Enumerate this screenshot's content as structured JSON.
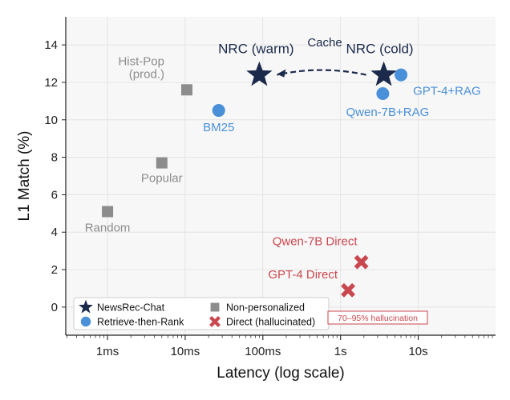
{
  "chart_data": {
    "type": "scatter",
    "title": "",
    "xlabel": "Latency (log scale)",
    "ylabel": "L1 Match (%)",
    "xscale": "log",
    "xlim": [
      0.00029,
      99
    ],
    "ylim": [
      -1.5,
      15.5
    ],
    "x_ticks": [
      {
        "value": 0.001,
        "label": "1ms"
      },
      {
        "value": 0.01,
        "label": "10ms"
      },
      {
        "value": 0.1,
        "label": "100ms"
      },
      {
        "value": 1,
        "label": "1s"
      },
      {
        "value": 10,
        "label": "10s"
      }
    ],
    "y_ticks": [
      0,
      2,
      4,
      6,
      8,
      10,
      12,
      14
    ],
    "grid": true,
    "legend_position": "bottom-left",
    "legend": [
      {
        "label": "NewsRec-Chat",
        "marker": "star",
        "color": "#1b2a4a"
      },
      {
        "label": "Retrieve-then-Rank",
        "marker": "circle",
        "color": "#4a90d9"
      },
      {
        "label": "Non-personalized",
        "marker": "square",
        "color": "#8c8c8c"
      },
      {
        "label": "Direct (hallucinated)",
        "marker": "x",
        "color": "#c9474f"
      }
    ],
    "series": [
      {
        "name": "NewsRec-Chat",
        "marker": "star",
        "color": "#1b2a4a",
        "points": [
          {
            "x": 0.09,
            "y": 12.4,
            "label": "NRC (warm)"
          },
          {
            "x": 3.6,
            "y": 12.4,
            "label": "NRC (cold)"
          }
        ]
      },
      {
        "name": "Retrieve-then-Rank",
        "marker": "circle",
        "color": "#4a90d9",
        "points": [
          {
            "x": 0.027,
            "y": 10.5,
            "label": "BM25"
          },
          {
            "x": 3.5,
            "y": 11.4,
            "label": "Qwen-7B+RAG"
          },
          {
            "x": 6.0,
            "y": 12.4,
            "label": "GPT-4+RAG"
          }
        ]
      },
      {
        "name": "Non-personalized",
        "marker": "square",
        "color": "#8c8c8c",
        "points": [
          {
            "x": 0.001,
            "y": 5.1,
            "label": "Random"
          },
          {
            "x": 0.005,
            "y": 7.7,
            "label": "Popular"
          },
          {
            "x": 0.0105,
            "y": 11.6,
            "label": "Hist-Pop (prod.)",
            "label_lines": [
              "Hist-Pop",
              "(prod.)"
            ]
          }
        ]
      },
      {
        "name": "Direct (hallucinated)",
        "marker": "x",
        "color": "#c9474f",
        "points": [
          {
            "x": 1.85,
            "y": 2.4,
            "label": "Qwen-7B Direct"
          },
          {
            "x": 1.25,
            "y": 0.9,
            "label": "GPT-4 Direct"
          }
        ]
      }
    ],
    "annotations": [
      {
        "text": "Cache",
        "arrow_from": "NRC (cold)",
        "arrow_to": "NRC (warm)",
        "style": "dashed"
      },
      {
        "text": "70–95% hallucination",
        "boxed": true,
        "color": "#c9474f"
      }
    ]
  }
}
